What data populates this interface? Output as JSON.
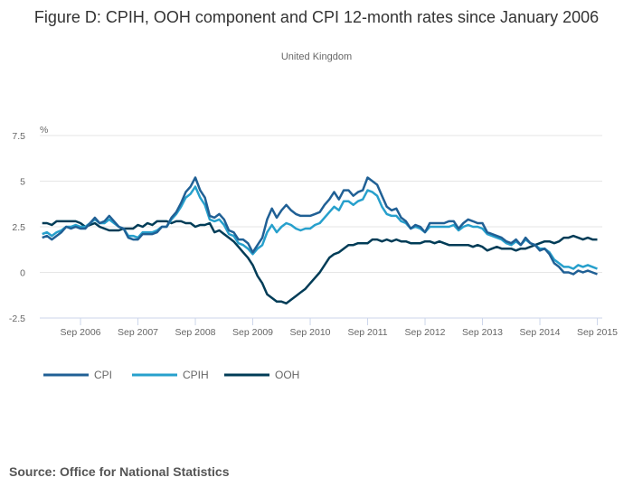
{
  "chart_data": {
    "type": "line",
    "title": "Figure D: CPIH, OOH component and CPI 12-month rates since January 2006",
    "subtitle": "United Kingdom",
    "ylabel": "%",
    "ylim": [
      -2.5,
      7.5
    ],
    "yticks": [
      7.5,
      5,
      2.5,
      0,
      -2.5
    ],
    "ytick_labels": [
      "7.5",
      "5",
      "2.5",
      "0",
      "-2.5"
    ],
    "x_start": "2006-01",
    "x_end": "2015-09",
    "xtick_labels": [
      "Sep 2006",
      "Sep 2007",
      "Sep 2008",
      "Sep 2009",
      "Sep 2010",
      "Sep 2011",
      "Sep 2012",
      "Sep 2013",
      "Sep 2014",
      "Sep 2015"
    ],
    "grid": true,
    "legend_position": "bottom-left",
    "series": [
      {
        "name": "CPI",
        "color": "#206095",
        "values": [
          1.9,
          2.0,
          1.8,
          2.0,
          2.2,
          2.5,
          2.4,
          2.5,
          2.4,
          2.4,
          2.7,
          3.0,
          2.7,
          2.8,
          3.1,
          2.8,
          2.5,
          2.4,
          1.9,
          1.8,
          1.8,
          2.1,
          2.1,
          2.1,
          2.2,
          2.5,
          2.5,
          3.0,
          3.3,
          3.8,
          4.4,
          4.7,
          5.2,
          4.5,
          4.1,
          3.1,
          3.0,
          3.2,
          2.9,
          2.3,
          2.2,
          1.8,
          1.8,
          1.6,
          1.1,
          1.5,
          1.9,
          2.9,
          3.5,
          3.0,
          3.4,
          3.7,
          3.4,
          3.2,
          3.1,
          3.1,
          3.1,
          3.2,
          3.3,
          3.7,
          4.0,
          4.4,
          4.0,
          4.5,
          4.5,
          4.2,
          4.4,
          4.5,
          5.2,
          5.0,
          4.8,
          4.2,
          3.6,
          3.4,
          3.5,
          3.0,
          2.8,
          2.4,
          2.6,
          2.5,
          2.2,
          2.7,
          2.7,
          2.7,
          2.7,
          2.8,
          2.8,
          2.4,
          2.7,
          2.9,
          2.8,
          2.7,
          2.7,
          2.2,
          2.1,
          2.0,
          1.9,
          1.7,
          1.6,
          1.8,
          1.5,
          1.9,
          1.6,
          1.5,
          1.2,
          1.3,
          1.0,
          0.5,
          0.3,
          0.0,
          0.0,
          -0.1,
          0.1,
          0.0,
          0.1,
          0.0,
          -0.1
        ]
      },
      {
        "name": "CPIH",
        "color": "#27a0cc",
        "values": [
          2.1,
          2.2,
          2.0,
          2.2,
          2.3,
          2.5,
          2.5,
          2.6,
          2.5,
          2.5,
          2.7,
          2.9,
          2.7,
          2.7,
          2.9,
          2.7,
          2.5,
          2.4,
          2.0,
          2.0,
          1.9,
          2.2,
          2.2,
          2.2,
          2.3,
          2.5,
          2.5,
          2.9,
          3.2,
          3.6,
          4.1,
          4.3,
          4.7,
          4.1,
          3.7,
          2.9,
          2.8,
          2.9,
          2.6,
          2.1,
          2.0,
          1.6,
          1.5,
          1.3,
          1.0,
          1.3,
          1.5,
          2.2,
          2.6,
          2.2,
          2.5,
          2.7,
          2.6,
          2.4,
          2.3,
          2.4,
          2.4,
          2.6,
          2.7,
          3.0,
          3.3,
          3.6,
          3.4,
          3.9,
          3.9,
          3.7,
          3.9,
          4.0,
          4.5,
          4.4,
          4.2,
          3.6,
          3.2,
          3.1,
          3.1,
          2.8,
          2.7,
          2.4,
          2.5,
          2.4,
          2.2,
          2.5,
          2.5,
          2.5,
          2.5,
          2.5,
          2.6,
          2.3,
          2.5,
          2.6,
          2.5,
          2.5,
          2.4,
          2.1,
          2.0,
          1.9,
          1.8,
          1.6,
          1.5,
          1.7,
          1.5,
          1.8,
          1.6,
          1.5,
          1.3,
          1.3,
          1.1,
          0.7,
          0.5,
          0.3,
          0.3,
          0.2,
          0.4,
          0.3,
          0.4,
          0.3,
          0.2
        ]
      },
      {
        "name": "OOH",
        "color": "#003c57",
        "values": [
          2.7,
          2.7,
          2.6,
          2.8,
          2.8,
          2.8,
          2.8,
          2.8,
          2.7,
          2.5,
          2.6,
          2.7,
          2.5,
          2.4,
          2.3,
          2.3,
          2.3,
          2.4,
          2.4,
          2.4,
          2.6,
          2.5,
          2.7,
          2.6,
          2.8,
          2.8,
          2.8,
          2.7,
          2.8,
          2.8,
          2.7,
          2.7,
          2.5,
          2.6,
          2.6,
          2.7,
          2.2,
          2.3,
          2.1,
          1.9,
          1.7,
          1.4,
          1.1,
          0.8,
          0.4,
          -0.2,
          -0.6,
          -1.2,
          -1.4,
          -1.6,
          -1.6,
          -1.7,
          -1.5,
          -1.3,
          -1.1,
          -0.9,
          -0.6,
          -0.3,
          0.0,
          0.4,
          0.8,
          1.0,
          1.1,
          1.3,
          1.5,
          1.5,
          1.6,
          1.6,
          1.6,
          1.8,
          1.8,
          1.7,
          1.8,
          1.7,
          1.8,
          1.7,
          1.7,
          1.6,
          1.6,
          1.6,
          1.7,
          1.7,
          1.6,
          1.7,
          1.6,
          1.5,
          1.5,
          1.5,
          1.5,
          1.5,
          1.4,
          1.5,
          1.4,
          1.2,
          1.3,
          1.4,
          1.3,
          1.3,
          1.3,
          1.2,
          1.3,
          1.3,
          1.4,
          1.5,
          1.6,
          1.7,
          1.7,
          1.6,
          1.7,
          1.9,
          1.9,
          2.0,
          1.9,
          1.8,
          1.9,
          1.8,
          1.8
        ]
      }
    ]
  },
  "source": "Source: Office for National Statistics"
}
